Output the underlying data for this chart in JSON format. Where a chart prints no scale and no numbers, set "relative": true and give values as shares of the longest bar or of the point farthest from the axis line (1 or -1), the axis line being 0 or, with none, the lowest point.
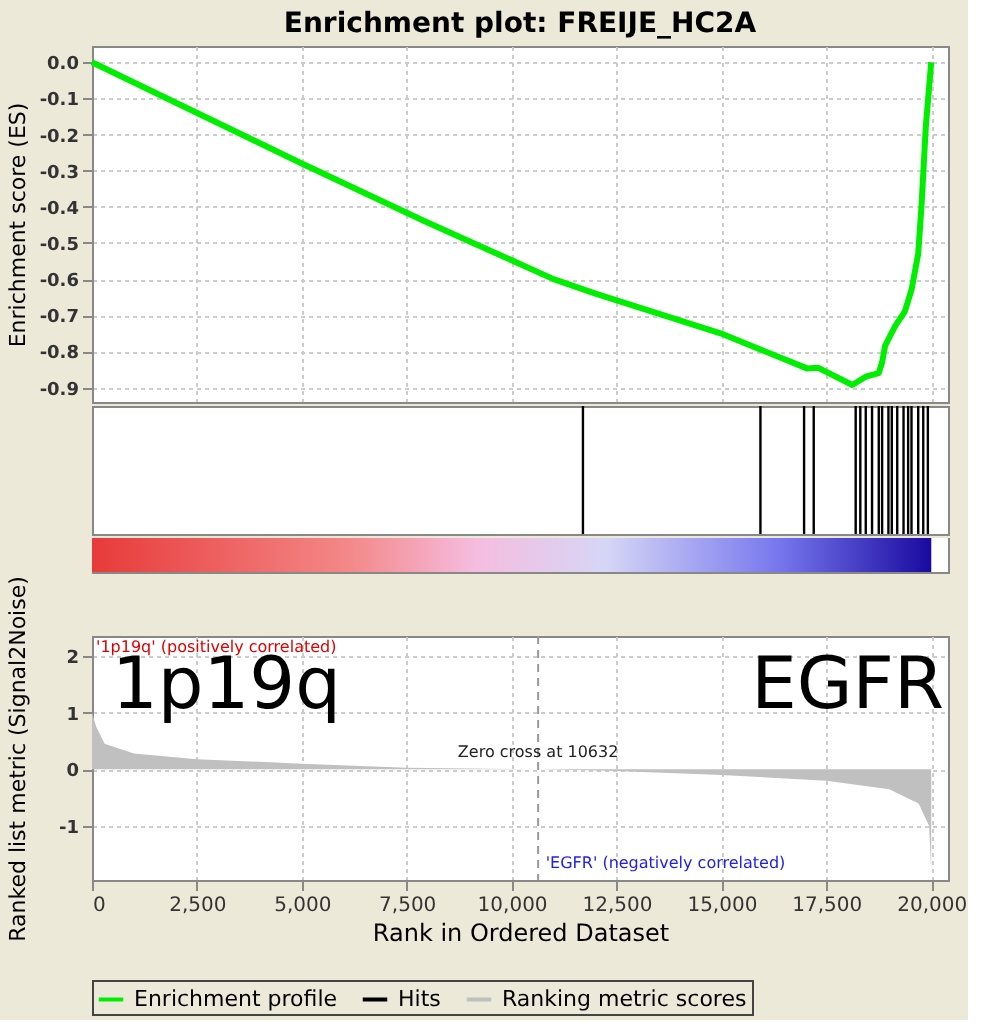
{
  "chart_data": [
    {
      "type": "line",
      "title": "Enrichment plot: FREIJE_HC2A",
      "ylabel": "Enrichment score (ES)",
      "xlim": [
        0,
        20400
      ],
      "xticks": [
        {
          "value": 0,
          "label": null
        },
        {
          "value": 2500,
          "label": null
        },
        {
          "value": 5000,
          "label": null
        },
        {
          "value": 7500,
          "label": null
        },
        {
          "value": 10000,
          "label": null
        },
        {
          "value": 12500,
          "label": null
        },
        {
          "value": 15000,
          "label": null
        },
        {
          "value": 17500,
          "label": null
        },
        {
          "value": 20000,
          "label": null
        }
      ],
      "ylim": [
        -0.94,
        0.045
      ],
      "yticks": [
        {
          "value": 0,
          "label": "0.0"
        },
        {
          "value": -0.1,
          "label": "-0.1"
        },
        {
          "value": -0.2,
          "label": "-0.2"
        },
        {
          "value": -0.3,
          "label": "-0.3"
        },
        {
          "value": -0.4,
          "label": "-0.4"
        },
        {
          "value": -0.5,
          "label": "-0.5"
        },
        {
          "value": -0.6,
          "label": "-0.6"
        },
        {
          "value": -0.7,
          "label": "-0.7"
        },
        {
          "value": -0.8,
          "label": "-0.8"
        },
        {
          "value": -0.9,
          "label": "-0.9"
        }
      ],
      "grid": true,
      "tick_labels": "y",
      "marker": "none",
      "line_style": "solid",
      "series": [
        {
          "name": "Enrichment profile",
          "color": "#00ee00",
          "x": [
            0,
            5000,
            7930,
            11000,
            12000,
            14980,
            17040,
            17300,
            18120,
            18440,
            18750,
            18830,
            18900,
            19140,
            19370,
            19530,
            19690,
            19770,
            19870,
            20000
          ],
          "values": [
            0,
            -0.28,
            -0.44,
            -0.6,
            -0.64,
            -0.75,
            -0.847,
            -0.845,
            -0.893,
            -0.87,
            -0.86,
            -0.83,
            -0.785,
            -0.73,
            -0.69,
            -0.63,
            -0.53,
            -0.395,
            -0.18,
            0
          ]
        }
      ]
    },
    {
      "type": "bar",
      "relative": true,
      "tick_labels": false,
      "xlim": [
        0,
        20400
      ],
      "series": [
        {
          "name": "Hits",
          "color": "#000000",
          "x": [
            11700,
            15930,
            16970,
            17200,
            18200,
            18310,
            18440,
            18590,
            18750,
            18830,
            18980,
            19060,
            19190,
            19340,
            19450,
            19530,
            19690,
            19810,
            19920
          ],
          "values": [
            1,
            1,
            1,
            1,
            1,
            1,
            1,
            1,
            1,
            1,
            1,
            1,
            1,
            1,
            1,
            1,
            1,
            1,
            1
          ]
        }
      ]
    },
    {
      "type": "area",
      "ylabel": "Ranked list metric (Signal2Noise)",
      "xlabel": "Rank in Ordered Dataset",
      "xlim": [
        0,
        20400
      ],
      "xticks": [
        0,
        {
          "value": 2500,
          "label": "2,500"
        },
        {
          "value": 5000,
          "label": "5,000"
        },
        {
          "value": 7500,
          "label": "7,500"
        },
        {
          "value": 10000,
          "label": "10,000"
        },
        {
          "value": 12500,
          "label": "12,500"
        },
        {
          "value": 15000,
          "label": "15,000"
        },
        {
          "value": 17500,
          "label": "17,500"
        },
        {
          "value": 20000,
          "label": "20,000"
        }
      ],
      "ylim": [
        -1.95,
        2.35
      ],
      "yticks": [
        -1,
        0,
        1,
        2
      ],
      "grid": true,
      "legend": "bottom",
      "series": [
        {
          "name": "Ranking metric scores",
          "color": "#c0c0c0",
          "x": [
            0,
            100,
            300,
            1000,
            2500,
            5000,
            7500,
            10632,
            12500,
            15000,
            17500,
            19000,
            19700,
            19950,
            20000
          ],
          "values": [
            1.0,
            0.75,
            0.45,
            0.28,
            0.18,
            0.1,
            0.03,
            0,
            -0.03,
            -0.1,
            -0.2,
            -0.35,
            -0.6,
            -1.0,
            -1.8
          ]
        }
      ],
      "ref_lines": [
        {
          "axis": "x",
          "value": 10632,
          "label": "Zero cross at 10632",
          "color": "#999999",
          "line_style": "dashed"
        }
      ],
      "annotations": [
        "'1p19q' (positively correlated)",
        "'EGFR' (negatively correlated)",
        "1p19q",
        "EGFR"
      ]
    }
  ]
}
